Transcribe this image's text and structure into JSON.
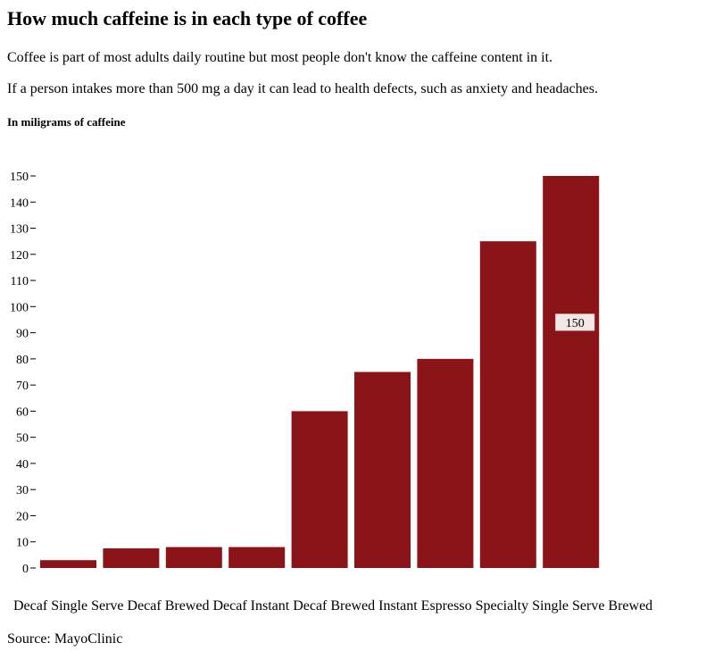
{
  "heading": {
    "title": "How much caffeine is in each type of coffee",
    "paragraph_1": "Coffee is part of most adults daily routine but most people don't know the caffeine content in it.",
    "paragraph_2": "If a person intakes more than 500 mg a day it can lead to health defects, such as anxiety and headaches."
  },
  "footer": {
    "source": "Source: MayoClinic"
  },
  "chart_data": {
    "type": "bar",
    "title": "How much caffeine is in each type of coffee",
    "ylabel": "In miligrams of caffeine",
    "xlabel": "",
    "categories": [
      "Decaf Single Serve",
      "Decaf Brewed",
      "Decaf Instant",
      "Decaf Brewed",
      "Instant",
      "Espresso",
      "Specialty",
      "Single Serve",
      "Brewed"
    ],
    "category_line": "Decaf Single Serve Decaf Brewed Decaf Instant Decaf Brewed Instant Espresso Specialty Single Serve Brewed",
    "values": [
      3,
      7.5,
      8,
      8,
      60,
      75,
      80,
      125,
      150
    ],
    "ylim": [
      0,
      150
    ],
    "yticks": [
      0,
      10,
      20,
      30,
      40,
      50,
      60,
      70,
      80,
      90,
      100,
      110,
      120,
      130,
      140,
      150
    ],
    "grid": false,
    "bar_color": "#8b1419",
    "tooltip": {
      "text": "150",
      "background": "#f2e6e6"
    }
  }
}
